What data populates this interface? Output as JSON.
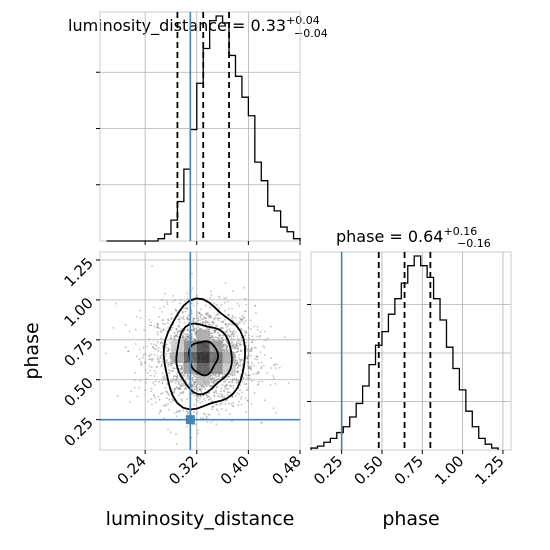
{
  "chart_data": {
    "type": "corner",
    "parameters": [
      {
        "key": "luminosity_distance",
        "label": "luminosity_distance",
        "title": "luminosity_distance = 0.33",
        "median": 0.33,
        "err_plus": "+0.04",
        "err_minus": "−0.04",
        "quantiles": [
          0.29,
          0.33,
          0.37
        ],
        "truth": 0.31,
        "range": [
          0.17,
          0.48
        ],
        "ticks": [
          0.24,
          0.32,
          0.4,
          0.48
        ],
        "tick_labels": [
          "0.24",
          "0.32",
          "0.40",
          "0.48"
        ]
      },
      {
        "key": "phase",
        "label": "phase",
        "title": "phase = 0.64",
        "median": 0.64,
        "err_plus": "+0.16",
        "err_minus": "−0.16",
        "quantiles": [
          0.48,
          0.64,
          0.8
        ],
        "truth": 0.25,
        "range": [
          0.06,
          1.3
        ],
        "ticks": [
          0.25,
          0.5,
          0.75,
          1.0,
          1.25
        ],
        "tick_labels": [
          "0.25",
          "0.50",
          "0.75",
          "1.00",
          "1.25"
        ]
      }
    ],
    "hist_luminosity_distance": {
      "bin_edges": [
        0.18,
        0.19,
        0.2,
        0.21,
        0.22,
        0.23,
        0.24,
        0.25,
        0.26,
        0.27,
        0.28,
        0.29,
        0.3,
        0.31,
        0.32,
        0.33,
        0.34,
        0.35,
        0.36,
        0.37,
        0.38,
        0.39,
        0.4,
        0.41,
        0.42,
        0.43,
        0.44,
        0.45,
        0.46,
        0.47,
        0.48
      ],
      "counts": [
        0,
        0,
        0,
        0,
        0,
        0,
        0,
        0,
        1,
        3,
        9,
        17,
        31,
        48,
        68,
        83,
        95,
        97,
        94,
        80,
        71,
        62,
        54,
        34,
        26,
        15,
        13,
        6,
        4,
        1
      ]
    },
    "hist_phase": {
      "bin_edges": [
        0.06,
        0.1,
        0.14,
        0.18,
        0.22,
        0.26,
        0.3,
        0.34,
        0.38,
        0.42,
        0.46,
        0.5,
        0.54,
        0.58,
        0.62,
        0.66,
        0.7,
        0.74,
        0.78,
        0.82,
        0.86,
        0.9,
        0.94,
        0.98,
        1.02,
        1.06,
        1.1,
        1.14,
        1.18,
        1.22
      ],
      "counts": [
        1,
        2,
        4,
        6,
        9,
        12,
        17,
        24,
        33,
        44,
        54,
        61,
        70,
        78,
        86,
        95,
        100,
        95,
        89,
        78,
        67,
        53,
        42,
        31,
        20,
        12,
        6,
        3,
        1
      ]
    },
    "truth_marker": {
      "luminosity_distance": 0.31,
      "phase": 0.25
    },
    "contour_levels": [
      {
        "cx": 0.33,
        "cy": 0.64,
        "rx": 0.022,
        "ry": 0.105
      },
      {
        "cx": 0.33,
        "cy": 0.64,
        "rx": 0.043,
        "ry": 0.215
      },
      {
        "cx": 0.33,
        "cy": 0.65,
        "rx": 0.063,
        "ry": 0.335
      }
    ],
    "grid": true
  }
}
